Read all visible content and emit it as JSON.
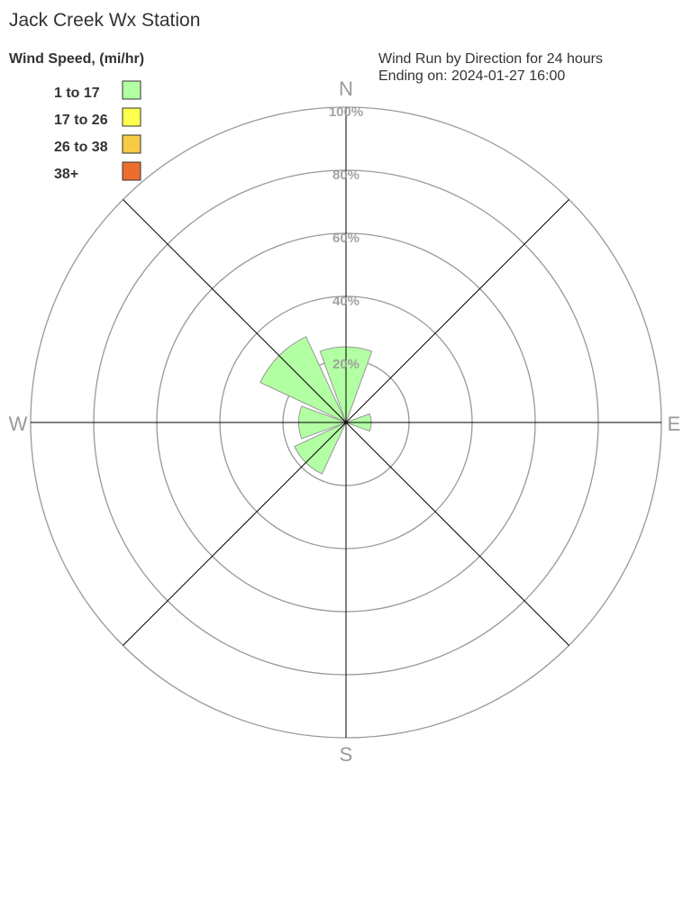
{
  "chart_data": {
    "type": "wind-rose",
    "title": "Jack Creek Wx Station",
    "subtitle_lines": [
      "Wind Run by Direction for 24 hours",
      "Ending on: 2024-01-27 16:00"
    ],
    "legend_title": "Wind Speed, (mi/hr)",
    "legend_placement": "top-left",
    "legend": [
      {
        "label": "1 to 17",
        "color": "#b3ffa3"
      },
      {
        "label": "17 to 26",
        "color": "#ffff4d"
      },
      {
        "label": "26 to 38",
        "color": "#f7cb45"
      },
      {
        "label": "38+",
        "color": "#ec6e2e"
      }
    ],
    "compass": [
      "N",
      "E",
      "S",
      "W"
    ],
    "radial_ticks": [
      "20%",
      "40%",
      "60%",
      "80%",
      "100%"
    ],
    "radial_range": [
      0,
      100
    ],
    "directions": [
      "N",
      "NE",
      "E",
      "SE",
      "S",
      "SW",
      "W",
      "NW"
    ],
    "series": [
      {
        "name": "1 to 17",
        "values": [
          24,
          0,
          8,
          0,
          0,
          18,
          15,
          30
        ]
      }
    ]
  }
}
